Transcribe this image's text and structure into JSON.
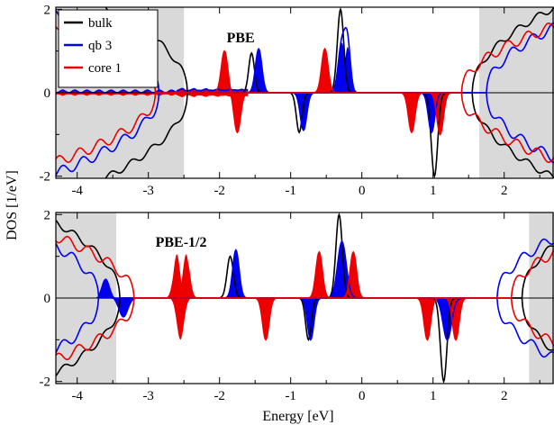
{
  "chart_data": {
    "type": "area",
    "xlabel": "Energy [eV]",
    "ylabel": "DOS [1/eV]",
    "xlim": [
      -4.3,
      2.7
    ],
    "ylim": [
      -2.05,
      2.05
    ],
    "xticks": [
      -4,
      -3,
      -2,
      -1,
      0,
      1,
      2
    ],
    "yticks": [
      -2,
      0,
      2
    ],
    "legend": {
      "position": "top-left",
      "entries": [
        {
          "name": "bulk",
          "color": "#000000"
        },
        {
          "name": "qb 3",
          "color": "#0000ee"
        },
        {
          "name": "core 1",
          "color": "#ee0000"
        }
      ]
    },
    "panels": [
      {
        "title": "PBE",
        "bulk_gap": [
          -2.45,
          1.55
        ],
        "qb3_gap": [
          -2.85,
          1.75
        ],
        "core1_gap": [
          -2.9,
          1.4
        ],
        "bulk_peaks": [
          {
            "center": -1.55,
            "height": 0.95,
            "width": 0.04
          },
          {
            "center": -0.3,
            "height": 2.0,
            "width": 0.045
          },
          {
            "center": -0.88,
            "height": -0.95,
            "width": 0.04
          },
          {
            "center": 1.02,
            "height": -2.0,
            "width": 0.045
          }
        ],
        "qb3_peaks": [
          {
            "center": -1.45,
            "height": 1.05,
            "width": 0.045
          },
          {
            "center": -0.28,
            "height": 1.2,
            "width": 0.05
          },
          {
            "center": -0.2,
            "height": 1.1,
            "width": 0.04
          },
          {
            "center": -0.82,
            "height": -0.9,
            "width": 0.045
          },
          {
            "center": 0.98,
            "height": -0.95,
            "width": 0.045
          }
        ],
        "core1_peaks": [
          {
            "center": -1.93,
            "height": 1.0,
            "width": 0.045
          },
          {
            "center": -1.75,
            "height": -0.95,
            "width": 0.045
          },
          {
            "center": -0.52,
            "height": 1.05,
            "width": 0.045
          },
          {
            "center": 0.7,
            "height": -0.95,
            "width": 0.045
          },
          {
            "center": 1.1,
            "height": -1.0,
            "width": 0.045
          }
        ],
        "core1_surface_noise": true
      },
      {
        "title": "PBE-1/2",
        "bulk_gap": [
          -3.4,
          2.25
        ],
        "qb3_gap": [
          -3.7,
          1.9
        ],
        "core1_gap": [
          -3.2,
          2.1
        ],
        "bulk_peaks": [
          {
            "center": -1.85,
            "height": 1.0,
            "width": 0.045
          },
          {
            "center": -0.32,
            "height": 2.0,
            "width": 0.045
          },
          {
            "center": -0.75,
            "height": -1.0,
            "width": 0.04
          },
          {
            "center": 1.15,
            "height": -2.0,
            "width": 0.045
          }
        ],
        "qb3_peaks": [
          {
            "center": -3.6,
            "height": 0.45,
            "width": 0.05
          },
          {
            "center": -3.35,
            "height": -0.45,
            "width": 0.06
          },
          {
            "center": -1.77,
            "height": 1.15,
            "width": 0.045
          },
          {
            "center": -0.28,
            "height": 1.35,
            "width": 0.06
          },
          {
            "center": -0.72,
            "height": -1.0,
            "width": 0.045
          },
          {
            "center": 1.2,
            "height": -1.0,
            "width": 0.06
          }
        ],
        "core1_peaks": [
          {
            "center": -2.6,
            "height": 1.05,
            "width": 0.045
          },
          {
            "center": -2.47,
            "height": 1.05,
            "width": 0.045
          },
          {
            "center": -2.55,
            "height": -1.0,
            "width": 0.05
          },
          {
            "center": -1.35,
            "height": -1.0,
            "width": 0.045
          },
          {
            "center": -0.6,
            "height": 1.1,
            "width": 0.045
          },
          {
            "center": -0.12,
            "height": 1.1,
            "width": 0.045
          },
          {
            "center": 0.92,
            "height": -1.0,
            "width": 0.045
          },
          {
            "center": 1.32,
            "height": -1.0,
            "width": 0.045
          }
        ],
        "core1_surface_noise": false
      }
    ]
  }
}
